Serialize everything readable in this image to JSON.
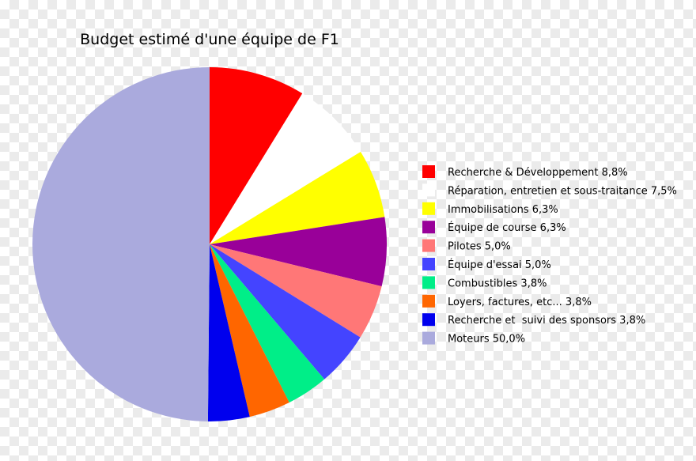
{
  "chart_data": {
    "type": "pie",
    "title": "Budget estimé d'une équipe de F1",
    "legend_position": "right",
    "slices": [
      {
        "label": "Recherche & Développement 8,8%",
        "value": 8.8,
        "color": "#ff0000"
      },
      {
        "label": "Réparation, entretien et sous-traitance 7,5%",
        "value": 7.5,
        "color": "#ffffff"
      },
      {
        "label": "Immobilisations 6,3%",
        "value": 6.3,
        "color": "#ffff00"
      },
      {
        "label": "Équipe de course 6,3%",
        "value": 6.3,
        "color": "#990099"
      },
      {
        "label": "Pilotes 5,0%",
        "value": 5.0,
        "color": "#ff7777"
      },
      {
        "label": "Équipe d'essai 5,0%",
        "value": 5.0,
        "color": "#4444ff"
      },
      {
        "label": "Combustibles 3,8%",
        "value": 3.8,
        "color": "#00ee88"
      },
      {
        "label": "Loyers, factures, etc... 3,8%",
        "value": 3.8,
        "color": "#ff6600"
      },
      {
        "label": "Recherche et  suivi des sponsors 3,8%",
        "value": 3.8,
        "color": "#0000ee"
      },
      {
        "label": "Moteurs 50,0%",
        "value": 50.0,
        "color": "#aaaadd"
      }
    ]
  }
}
